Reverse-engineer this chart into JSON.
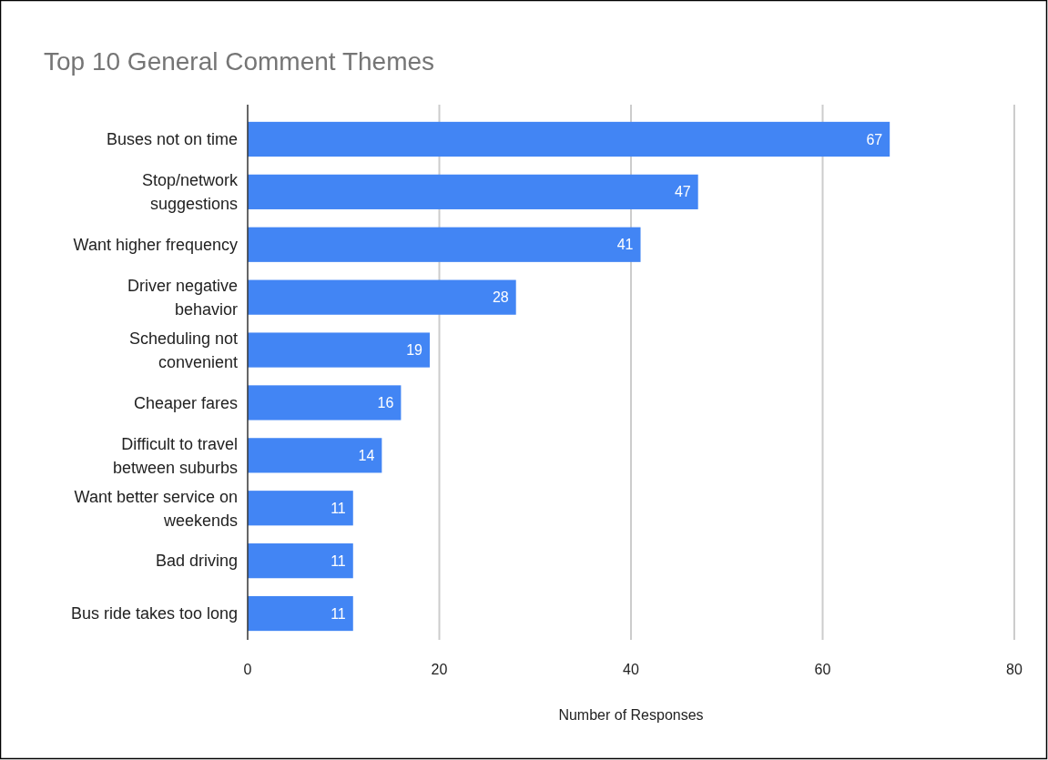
{
  "chart_data": {
    "type": "bar",
    "orientation": "horizontal",
    "title": "Top 10 General Comment Themes",
    "xlabel": "Number of Responses",
    "categories": [
      "Buses not on time",
      "Stop/network suggestions",
      "Want higher frequency",
      "Driver negative behavior",
      "Scheduling not convenient",
      "Cheaper fares",
      "Difficult to travel between suburbs",
      "Want better service on weekends",
      "Bad driving",
      "Bus ride takes too long"
    ],
    "values": [
      67,
      47,
      41,
      28,
      19,
      16,
      14,
      11,
      11,
      11
    ],
    "color": "#4285f4",
    "xlim": [
      0,
      80
    ],
    "xticks": [
      0,
      20,
      40,
      60,
      80
    ],
    "grid": "x",
    "data_labels": true
  }
}
